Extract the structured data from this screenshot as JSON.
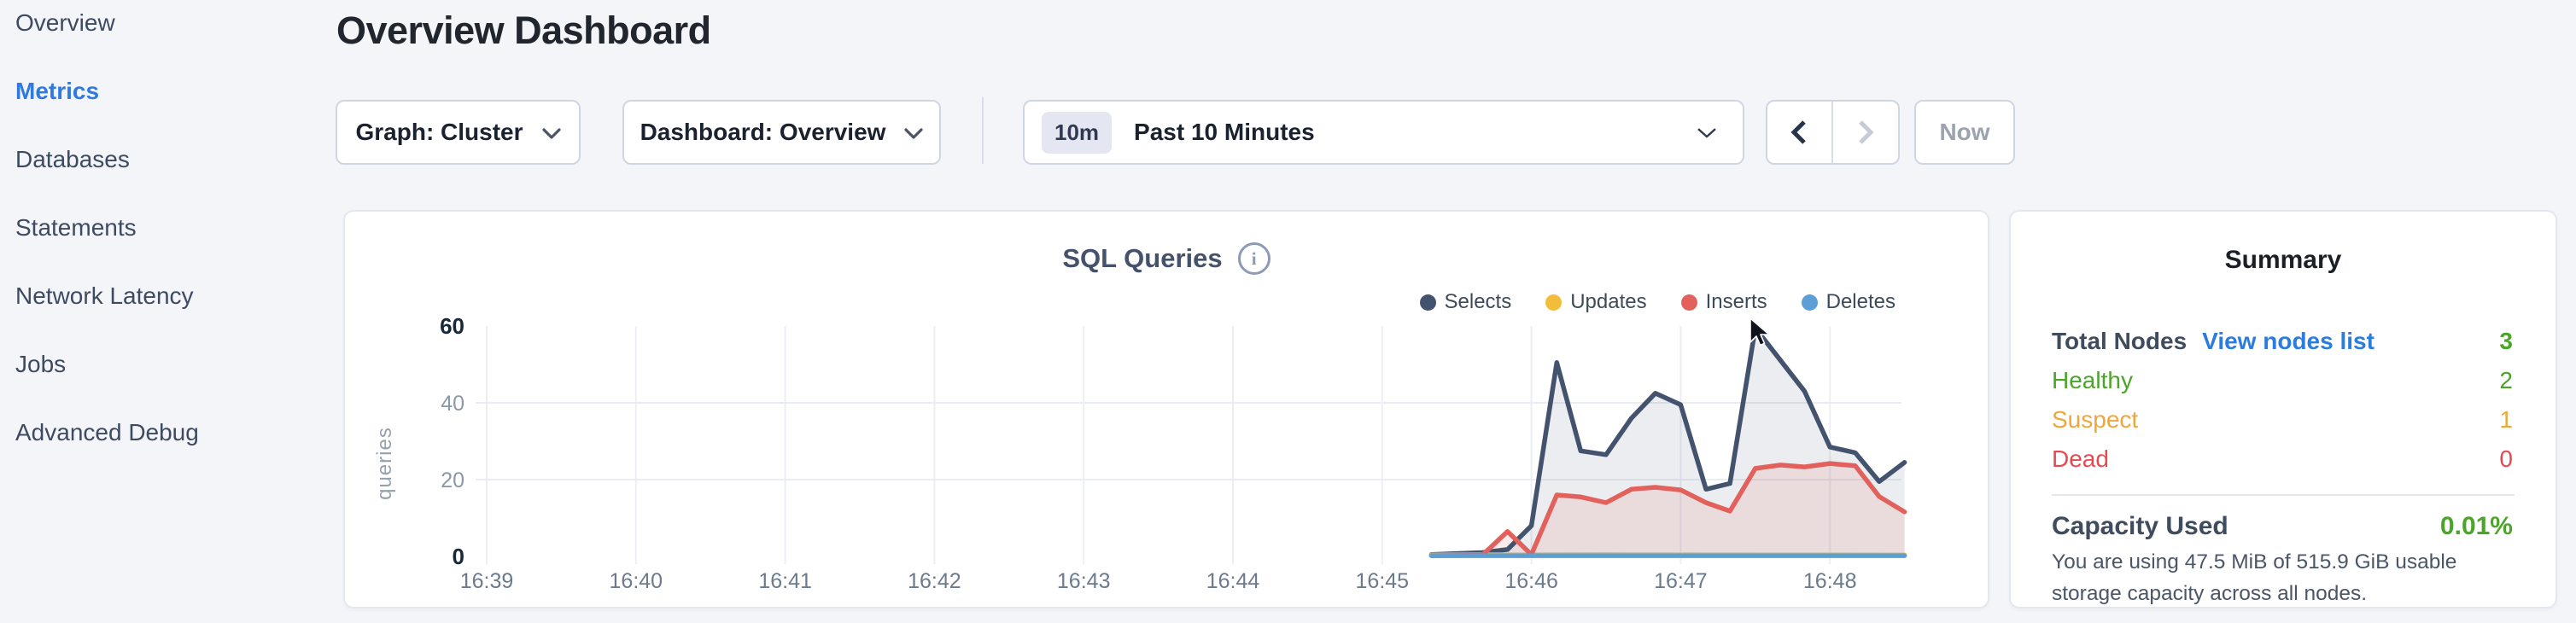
{
  "sidebar": {
    "items": [
      {
        "label": "Overview",
        "active": false
      },
      {
        "label": "Metrics",
        "active": true
      },
      {
        "label": "Databases",
        "active": false
      },
      {
        "label": "Statements",
        "active": false
      },
      {
        "label": "Network Latency",
        "active": false
      },
      {
        "label": "Jobs",
        "active": false
      },
      {
        "label": "Advanced Debug",
        "active": false
      }
    ],
    "active_color": "#2f7ae0"
  },
  "header": {
    "title": "Overview Dashboard"
  },
  "controls": {
    "graph_dropdown": {
      "label": "Graph: Cluster"
    },
    "dashboard_dropdown": {
      "label": "Dashboard: Overview"
    },
    "time_window": {
      "badge": "10m",
      "label": "Past 10 Minutes"
    },
    "now_button": {
      "label": "Now",
      "disabled": true
    },
    "prev_enabled": true,
    "next_enabled": false
  },
  "chart_data": {
    "type": "area",
    "title": "SQL Queries",
    "ylabel": "queries",
    "x_categories": [
      "16:39",
      "16:40",
      "16:41",
      "16:42",
      "16:43",
      "16:44",
      "16:45",
      "16:46",
      "16:47",
      "16:48"
    ],
    "xlim_minutes": [
      0,
      9.5
    ],
    "y_ticks": [
      0,
      20,
      40,
      60
    ],
    "ylim": [
      0,
      60
    ],
    "grid": {
      "horizontal_at": [
        20,
        40
      ],
      "vertical_every_minute": true
    },
    "legend_position": "top-right",
    "series": [
      {
        "name": "Selects",
        "color": "#43536e",
        "fill": "rgba(67,83,110,0.10)",
        "points": [
          [
            6.33,
            0.5
          ],
          [
            6.67,
            1
          ],
          [
            6.84,
            1.8
          ],
          [
            7.0,
            8
          ],
          [
            7.17,
            50.5
          ],
          [
            7.33,
            27.5
          ],
          [
            7.5,
            26.5
          ],
          [
            7.67,
            36
          ],
          [
            7.83,
            42.5
          ],
          [
            8.0,
            39.5
          ],
          [
            8.17,
            17.5
          ],
          [
            8.33,
            19
          ],
          [
            8.5,
            59.5
          ],
          [
            8.67,
            51
          ],
          [
            8.83,
            43
          ],
          [
            9.0,
            28.5
          ],
          [
            9.17,
            27
          ],
          [
            9.33,
            19.5
          ],
          [
            9.5,
            24.5
          ]
        ]
      },
      {
        "name": "Updates",
        "color": "#f2bd3a",
        "fill": null,
        "points": [
          [
            6.33,
            0.4
          ],
          [
            7.5,
            0.5
          ],
          [
            9.5,
            0.4
          ]
        ]
      },
      {
        "name": "Inserts",
        "color": "#e2615d",
        "fill": "rgba(226,97,93,0.12)",
        "points": [
          [
            6.33,
            0.2
          ],
          [
            6.67,
            0.3
          ],
          [
            6.84,
            6.5
          ],
          [
            7.0,
            0.5
          ],
          [
            7.17,
            16
          ],
          [
            7.33,
            15.5
          ],
          [
            7.5,
            14
          ],
          [
            7.67,
            17.5
          ],
          [
            7.83,
            18
          ],
          [
            8.0,
            17.3
          ],
          [
            8.17,
            14
          ],
          [
            8.33,
            11.8
          ],
          [
            8.5,
            22.9
          ],
          [
            8.67,
            23.8
          ],
          [
            8.83,
            23.3
          ],
          [
            9.0,
            24.2
          ],
          [
            9.17,
            23.6
          ],
          [
            9.33,
            15.6
          ],
          [
            9.5,
            11.6
          ]
        ]
      },
      {
        "name": "Deletes",
        "color": "#5b9fd6",
        "fill": null,
        "points": [
          [
            6.33,
            0.2
          ],
          [
            9.5,
            0.2
          ]
        ]
      }
    ]
  },
  "summary": {
    "title": "Summary",
    "total_nodes_label": "Total Nodes",
    "view_nodes_link": "View nodes list",
    "view_link_color": "#2b7ce0",
    "total_nodes_value": "3",
    "total_nodes_color": "#4aa528",
    "rows": [
      {
        "label": "Healthy",
        "value": "2",
        "color": "#4aa528"
      },
      {
        "label": "Suspect",
        "value": "1",
        "color": "#efa63c"
      },
      {
        "label": "Dead",
        "value": "0",
        "color": "#e8494f"
      }
    ],
    "capacity_label": "Capacity Used",
    "capacity_value": "0.01%",
    "capacity_color": "#4aa528",
    "capacity_description": "You are using 47.5 MiB of 515.9 GiB usable storage capacity across all nodes."
  }
}
